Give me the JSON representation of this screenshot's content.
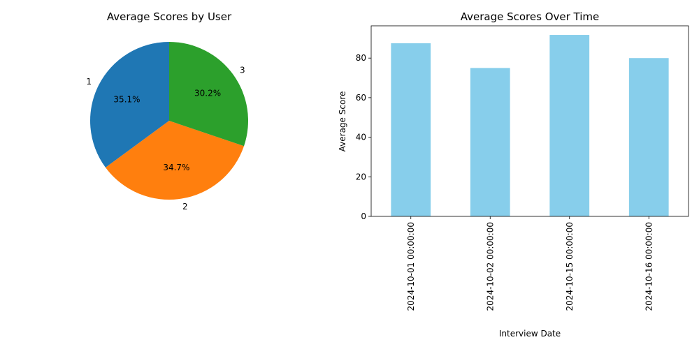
{
  "chart_data": [
    {
      "type": "pie",
      "title": "Average Scores by User",
      "labels": [
        "1",
        "2",
        "3"
      ],
      "percent_labels": [
        "35.1%",
        "34.7%",
        "30.2%"
      ],
      "values": [
        35.1,
        34.7,
        30.2
      ],
      "colors": [
        "#1f77b4",
        "#ff7f0e",
        "#2ca02c"
      ]
    },
    {
      "type": "bar",
      "title": "Average Scores Over Time",
      "xlabel": "Interview Date",
      "ylabel": "Average Score",
      "categories": [
        "2024-10-01 00:00:00",
        "2024-10-02 00:00:00",
        "2024-10-15 00:00:00",
        "2024-10-16 00:00:00"
      ],
      "values": [
        87.5,
        75,
        91.7,
        80
      ],
      "yticks": [
        "0",
        "20",
        "40",
        "60",
        "80"
      ],
      "ylim": [
        0,
        96.3
      ],
      "bar_color": "#87ceeb",
      "grid": false
    }
  ]
}
